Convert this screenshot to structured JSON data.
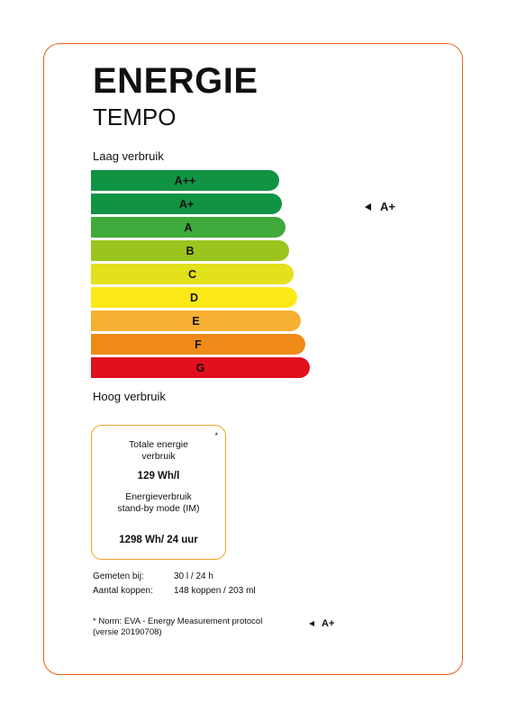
{
  "title": "ENERGIE",
  "subtitle": "TEMPO",
  "scale": {
    "top_label": "Laag verbruik",
    "bottom_label": "Hoog verbruik",
    "classes": [
      {
        "label": "A++",
        "color": "#109343"
      },
      {
        "label": "A+",
        "color": "#109343"
      },
      {
        "label": "A",
        "color": "#3faa3b"
      },
      {
        "label": "B",
        "color": "#9cc41e"
      },
      {
        "label": "C",
        "color": "#e3e01c"
      },
      {
        "label": "D",
        "color": "#fde917"
      },
      {
        "label": "E",
        "color": "#f8b032"
      },
      {
        "label": "F",
        "color": "#ef8a16"
      },
      {
        "label": "G",
        "color": "#e20f1c"
      }
    ],
    "rating": "A+"
  },
  "info_box": {
    "asterisk": "*",
    "energy_label_line1": "Totale energie",
    "energy_label_line2": "verbruik",
    "energy_value": "129 Wh/l",
    "standby_label_line1": "Energieverbruik",
    "standby_label_line2": "stand-by mode (IM)",
    "standby_value": "1298 Wh/ 24 uur"
  },
  "measurements": [
    {
      "label": "Gemeten bij:",
      "value": "30 l / 24 h"
    },
    {
      "label": "Aantal koppen:",
      "value": "148 koppen / 203 ml"
    }
  ],
  "footnote": {
    "line1": "* Norm: EVA - Energy Measurement protocol",
    "line2": "(versie 20190708)",
    "rating": "A+"
  },
  "colors": {
    "border": "#e8601c",
    "box_border": "#f4a32a"
  }
}
